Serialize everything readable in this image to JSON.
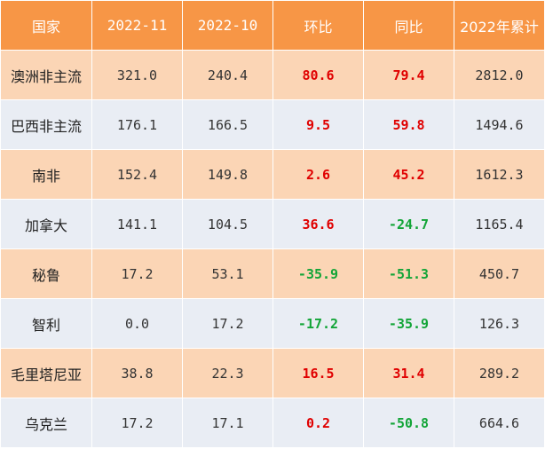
{
  "columns": [
    "国家",
    "2022-11",
    "2022-10",
    "环比",
    "同比",
    "2022年累计"
  ],
  "rows": [
    {
      "country": "澳洲非主流",
      "nov": "321.0",
      "oct": "240.4",
      "mom": "80.6",
      "yoy": "79.4",
      "ytd": "2812.0"
    },
    {
      "country": "巴西非主流",
      "nov": "176.1",
      "oct": "166.5",
      "mom": "9.5",
      "yoy": "59.8",
      "ytd": "1494.6"
    },
    {
      "country": "南非",
      "nov": "152.4",
      "oct": "149.8",
      "mom": "2.6",
      "yoy": "45.2",
      "ytd": "1612.3"
    },
    {
      "country": "加拿大",
      "nov": "141.1",
      "oct": "104.5",
      "mom": "36.6",
      "yoy": "-24.7",
      "ytd": "1165.4"
    },
    {
      "country": "秘鲁",
      "nov": "17.2",
      "oct": "53.1",
      "mom": "-35.9",
      "yoy": "-51.3",
      "ytd": "450.7"
    },
    {
      "country": "智利",
      "nov": "0.0",
      "oct": "17.2",
      "mom": "-17.2",
      "yoy": "-35.9",
      "ytd": "126.3"
    },
    {
      "country": "毛里塔尼亚",
      "nov": "38.8",
      "oct": "22.3",
      "mom": "16.5",
      "yoy": "31.4",
      "ytd": "289.2"
    },
    {
      "country": "乌克兰",
      "nov": "17.2",
      "oct": "17.1",
      "mom": "0.2",
      "yoy": "-50.8",
      "ytd": "664.6"
    }
  ],
  "colors": {
    "header_bg": "#f79646",
    "row_odd_bg": "#fbd5b5",
    "row_even_bg": "#e9edf4",
    "positive": "#e00000",
    "negative": "#13a538"
  }
}
